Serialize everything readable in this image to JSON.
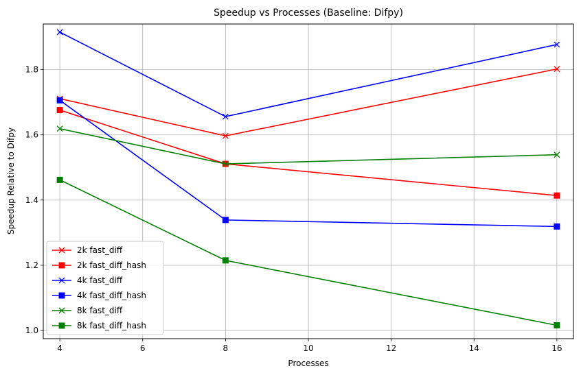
{
  "chart_data": {
    "type": "line",
    "title": "Speedup vs Processes (Baseline: Difpy)",
    "xlabel": "Processes",
    "ylabel": "Speedup Relative to Difpy",
    "xlim": [
      3.6,
      16.4
    ],
    "ylim": [
      0.975,
      1.94
    ],
    "xticks": [
      4,
      6,
      8,
      10,
      12,
      14,
      16
    ],
    "yticks": [
      1.0,
      1.2,
      1.4,
      1.6,
      1.8
    ],
    "grid": true,
    "legend_position": "lower-left",
    "x": [
      4,
      8,
      16
    ],
    "series": [
      {
        "name": "2k fast_diff",
        "color": "#ff0000",
        "marker": "x",
        "values": [
          1.711,
          1.597,
          1.802
        ]
      },
      {
        "name": "2k fast_diff_hash",
        "color": "#ff0000",
        "marker": "square",
        "values": [
          1.676,
          1.511,
          1.414
        ]
      },
      {
        "name": "4k fast_diff",
        "color": "#0000ff",
        "marker": "x",
        "values": [
          1.915,
          1.656,
          1.877
        ]
      },
      {
        "name": "4k fast_diff_hash",
        "color": "#0000ff",
        "marker": "square",
        "values": [
          1.706,
          1.339,
          1.319
        ]
      },
      {
        "name": "8k fast_diff",
        "color": "#008000",
        "marker": "x",
        "values": [
          1.619,
          1.511,
          1.539
        ]
      },
      {
        "name": "8k fast_diff_hash",
        "color": "#008000",
        "marker": "square",
        "values": [
          1.462,
          1.215,
          1.016
        ]
      }
    ]
  }
}
